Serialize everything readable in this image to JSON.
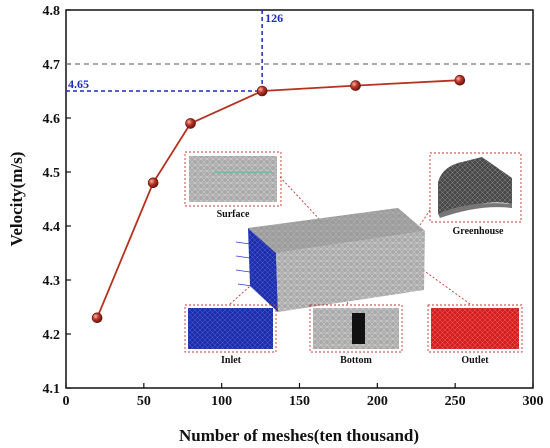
{
  "chart_data": {
    "type": "line",
    "xlabel": "Number of meshes(ten thousand)",
    "ylabel": "Velocity(m/s)",
    "xlim": [
      0,
      300
    ],
    "ylim": [
      4.1,
      4.8
    ],
    "xticks": [
      0,
      50,
      100,
      150,
      200,
      250,
      300
    ],
    "yticks": [
      4.1,
      4.2,
      4.3,
      4.4,
      4.5,
      4.6,
      4.7,
      4.8
    ],
    "x": [
      20,
      56,
      80,
      126,
      186,
      253
    ],
    "y": [
      4.23,
      4.48,
      4.59,
      4.65,
      4.66,
      4.67
    ],
    "series_color": "#b5321f",
    "marker_color": "#c0392b",
    "reference_line": {
      "y": 4.7,
      "color": "#777777",
      "style": "dashed"
    },
    "annotation": {
      "x": 126,
      "y": 4.65,
      "x_label": "126",
      "y_label": "4.65",
      "color": "#1a2bbf"
    },
    "insets": [
      {
        "caption": "Surface"
      },
      {
        "caption": "Greenhouse"
      },
      {
        "caption": "Inlet"
      },
      {
        "caption": "Bottom"
      },
      {
        "caption": "Outlet"
      }
    ]
  }
}
